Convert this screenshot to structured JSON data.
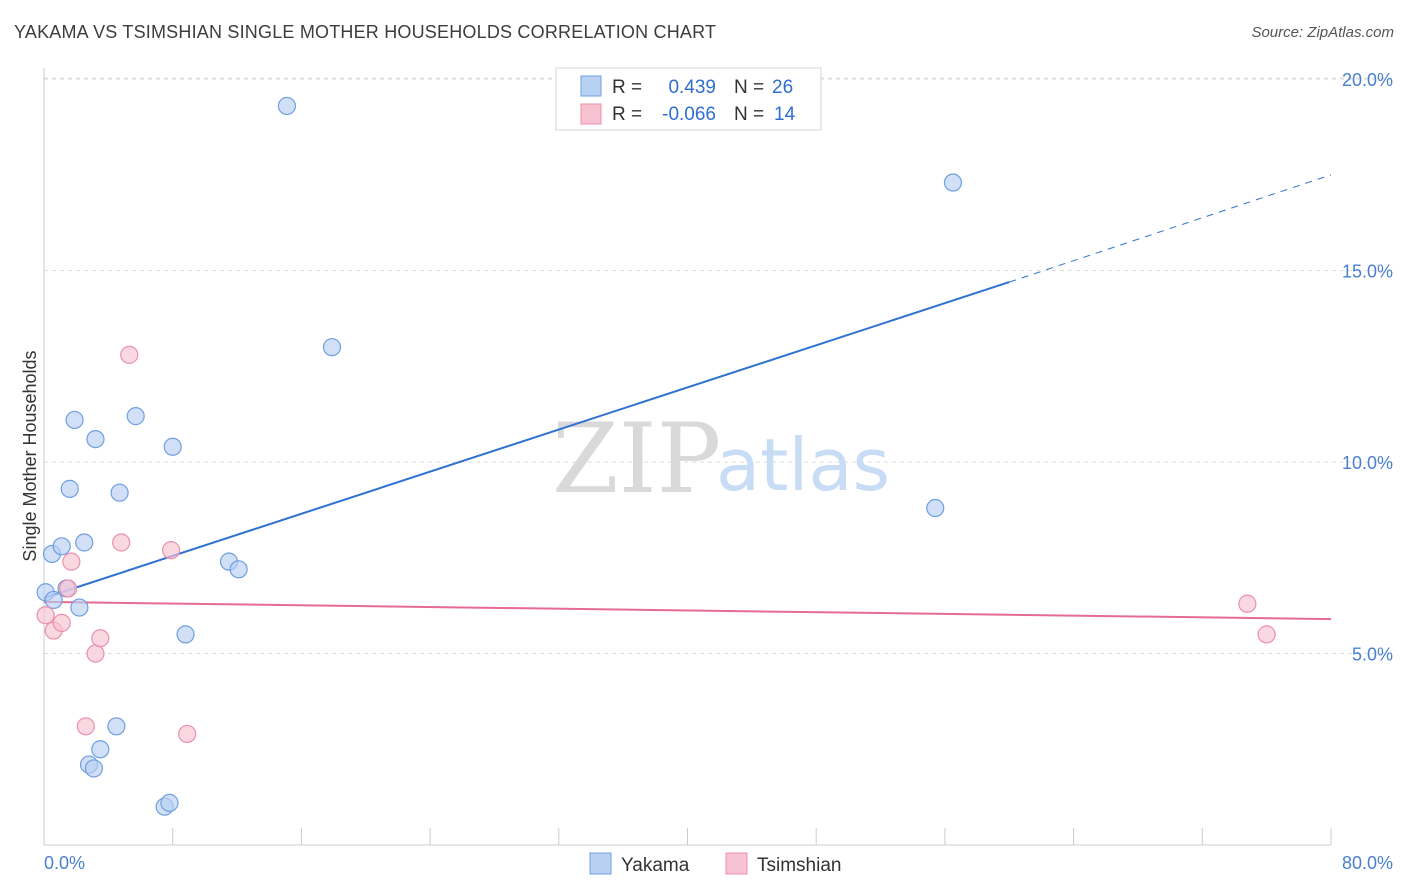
{
  "title": "YAKAMA VS TSIMSHIAN SINGLE MOTHER HOUSEHOLDS CORRELATION CHART",
  "source": "Source: ZipAtlas.com",
  "watermark": {
    "zip": "ZIP",
    "atlas": "atlas"
  },
  "legend": {
    "rows": [
      {
        "r_label": "R =",
        "r_value": "0.439",
        "n_label": "N =",
        "n_value": "26"
      },
      {
        "r_label": "R =",
        "r_value": "-0.066",
        "n_label": "N =",
        "n_value": "14"
      }
    ]
  },
  "colors": {
    "yakama_fill": "#b8d0f2",
    "yakama_stroke": "#6f9fe0",
    "yakama_line": "#2f72d0",
    "tsimshian_fill": "#f7c3d2",
    "tsimshian_stroke": "#ec8fab",
    "tsimshian_line": "#e56b93",
    "grid": "#dddddd",
    "axis_label": "#4a7fd0"
  },
  "chart_data": {
    "type": "scatter",
    "title": "YAKAMA VS TSIMSHIAN SINGLE MOTHER HOUSEHOLDS CORRELATION CHART",
    "xlabel": "",
    "ylabel": "Single Mother Households",
    "xlim": [
      0,
      80
    ],
    "ylim": [
      0,
      20.5
    ],
    "x_tick_labels": [
      "0.0%",
      "80.0%"
    ],
    "y_ticks": [
      5,
      10,
      15,
      20
    ],
    "y_tick_labels": [
      "5.0%",
      "10.0%",
      "15.0%",
      "20.0%"
    ],
    "grid": true,
    "legend_position": "top-center",
    "series": [
      {
        "name": "Yakama",
        "r": 0.439,
        "n": 26,
        "points": [
          [
            0.1,
            6.6
          ],
          [
            0.5,
            7.6
          ],
          [
            0.6,
            6.4
          ],
          [
            1.1,
            7.8
          ],
          [
            1.4,
            6.7
          ],
          [
            1.6,
            9.3
          ],
          [
            1.9,
            11.1
          ],
          [
            2.2,
            6.2
          ],
          [
            2.5,
            7.9
          ],
          [
            2.8,
            2.1
          ],
          [
            3.1,
            2.0
          ],
          [
            3.2,
            10.6
          ],
          [
            3.5,
            2.5
          ],
          [
            4.5,
            3.1
          ],
          [
            4.7,
            9.2
          ],
          [
            5.7,
            11.2
          ],
          [
            7.5,
            1.0
          ],
          [
            7.8,
            1.1
          ],
          [
            8.0,
            10.4
          ],
          [
            8.8,
            5.5
          ],
          [
            11.5,
            7.4
          ],
          [
            12.1,
            7.2
          ],
          [
            15.1,
            19.3
          ],
          [
            17.9,
            13.0
          ],
          [
            55.4,
            8.8
          ],
          [
            56.5,
            17.3
          ]
        ],
        "trend": {
          "x": [
            0.0,
            60.0
          ],
          "y": [
            6.45,
            14.7
          ],
          "dashed_extension": {
            "x": [
              60.0,
              80.0
            ],
            "y": [
              14.7,
              17.5
            ]
          }
        }
      },
      {
        "name": "Tsimshian",
        "r": -0.066,
        "n": 14,
        "points": [
          [
            0.1,
            6.0
          ],
          [
            0.6,
            5.6
          ],
          [
            1.1,
            5.8
          ],
          [
            1.5,
            6.7
          ],
          [
            1.7,
            7.4
          ],
          [
            2.6,
            3.1
          ],
          [
            3.2,
            5.0
          ],
          [
            3.5,
            5.4
          ],
          [
            4.8,
            7.9
          ],
          [
            5.3,
            12.8
          ],
          [
            7.9,
            7.7
          ],
          [
            8.9,
            2.9
          ],
          [
            74.8,
            6.3
          ],
          [
            76.0,
            5.5
          ]
        ],
        "trend": {
          "x": [
            0.0,
            80.0
          ],
          "y": [
            6.35,
            5.9
          ]
        }
      }
    ]
  }
}
